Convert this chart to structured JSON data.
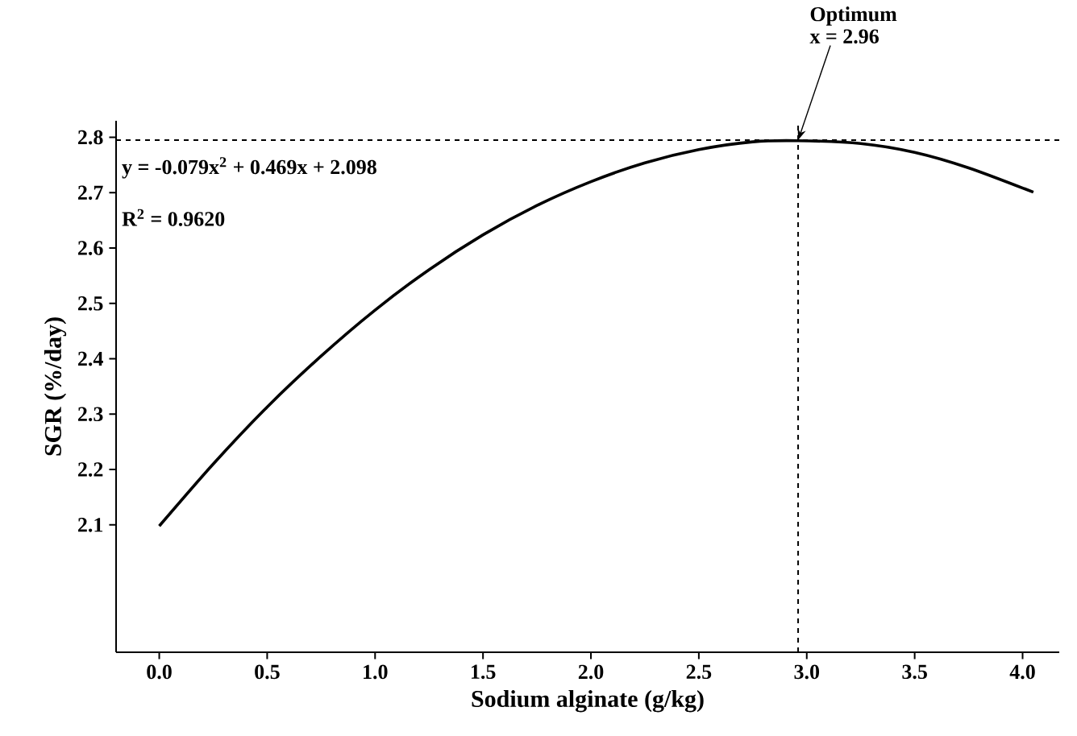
{
  "chart_data": {
    "type": "line",
    "xlabel": "Sodium alginate (g/kg)",
    "ylabel": "SGR (%/day)",
    "x": [
      0,
      0.25,
      0.5,
      0.75,
      1.0,
      1.25,
      1.5,
      1.75,
      2.0,
      2.25,
      2.5,
      2.75,
      2.96,
      3.25,
      3.5,
      3.75,
      4.05
    ],
    "series": [
      {
        "color": "#000000",
        "values": [
          2.098,
          2.21,
          2.313,
          2.405,
          2.488,
          2.561,
          2.624,
          2.677,
          2.72,
          2.754,
          2.778,
          2.792,
          2.794,
          2.789,
          2.773,
          2.745,
          2.701
        ]
      }
    ],
    "xlim": [
      -0.2,
      4.17
    ],
    "ylim": [
      1.87,
      2.83
    ],
    "xticks": [
      {
        "value": 0,
        "label": "0.0"
      },
      0.5,
      {
        "value": 1,
        "label": "1.0"
      },
      1.5,
      {
        "value": 2,
        "label": "2.0"
      },
      2.5,
      {
        "value": 3,
        "label": "3.0"
      },
      3.5,
      {
        "value": 4,
        "label": "4.0"
      }
    ],
    "yticks": [
      2.1,
      2.2,
      2.3,
      2.4,
      2.5,
      2.6,
      2.7,
      2.8
    ],
    "ref_lines": [
      {
        "axis": "y",
        "value": 2.795,
        "line_style": "dashed"
      },
      {
        "axis": "x",
        "value": 2.96,
        "line_style": "dashed"
      }
    ],
    "annotations": [
      {
        "text": "Optimum",
        "x": 2.96,
        "y": 2.795
      },
      "x = 2.96",
      "y = -0.079x$^{2}$ + 0.469x + 2.098",
      "R$^{2}$ = 0.9620"
    ],
    "grid": false,
    "marker": "none",
    "line_style": "solid"
  }
}
